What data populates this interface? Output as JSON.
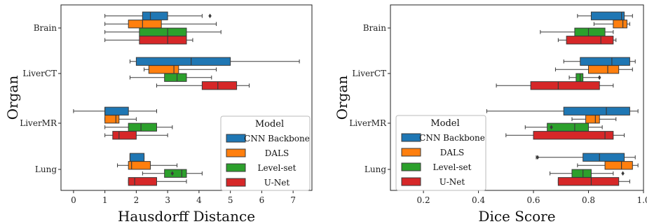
{
  "chart_data": [
    {
      "type": "boxplot",
      "xlabel": "Hausdorff Distance",
      "ylabel": "Organ",
      "xlim": [
        -0.4,
        7.6
      ],
      "xticks": [
        0,
        1,
        2,
        3,
        4,
        5,
        6,
        7
      ],
      "categories": [
        "Brain",
        "LiverCT",
        "LiverMR",
        "Lung"
      ],
      "legend": {
        "title": "Model",
        "position": "lower-right"
      },
      "series": [
        {
          "name": "CNN Backbone",
          "color": "#1f77b4",
          "boxes": [
            {
              "min": 1.0,
              "q1": 2.2,
              "median": 2.45,
              "q3": 3.0,
              "max": 4.1,
              "outliers": [
                4.35
              ]
            },
            {
              "min": 1.8,
              "q1": 2.0,
              "median": 3.75,
              "q3": 5.0,
              "max": 7.2,
              "outliers": []
            },
            {
              "min": 0.0,
              "q1": 1.0,
              "median": 1.0,
              "q3": 1.75,
              "max": 2.65,
              "outliers": []
            },
            {
              "min": 1.8,
              "q1": 1.8,
              "median": 1.8,
              "q3": 2.25,
              "max": 2.25,
              "outliers": []
            }
          ]
        },
        {
          "name": "DALS",
          "color": "#ff7f0e",
          "boxes": [
            {
              "min": 1.0,
              "q1": 1.75,
              "median": 2.2,
              "q3": 2.8,
              "max": 4.55,
              "outliers": []
            },
            {
              "min": 2.25,
              "q1": 2.4,
              "median": 3.2,
              "q3": 3.35,
              "max": 4.55,
              "outliers": []
            },
            {
              "min": 1.0,
              "q1": 1.0,
              "median": 1.35,
              "q3": 1.45,
              "max": 2.0,
              "outliers": []
            },
            {
              "min": 1.4,
              "q1": 1.75,
              "median": 1.85,
              "q3": 2.45,
              "max": 3.3,
              "outliers": []
            }
          ]
        },
        {
          "name": "Level-set",
          "color": "#2ca02c",
          "boxes": [
            {
              "min": 1.0,
              "q1": 2.1,
              "median": 3.0,
              "q3": 3.6,
              "max": 4.7,
              "outliers": []
            },
            {
              "min": 1.8,
              "q1": 2.9,
              "median": 3.3,
              "q3": 3.6,
              "max": 4.4,
              "outliers": []
            },
            {
              "min": 1.0,
              "q1": 1.75,
              "median": 2.15,
              "q3": 2.65,
              "max": 3.15,
              "outliers": []
            },
            {
              "min": 2.2,
              "q1": 2.9,
              "median": 3.45,
              "q3": 3.6,
              "max": 4.1,
              "outliers": [
                3.15
              ]
            }
          ]
        },
        {
          "name": "U-Net",
          "color": "#d62728",
          "boxes": [
            {
              "min": 1.0,
              "q1": 2.1,
              "median": 3.0,
              "q3": 3.6,
              "max": 3.8,
              "outliers": []
            },
            {
              "min": 2.65,
              "q1": 4.1,
              "median": 4.6,
              "q3": 5.2,
              "max": 5.6,
              "outliers": []
            },
            {
              "min": 1.0,
              "q1": 1.25,
              "median": 1.45,
              "q3": 2.0,
              "max": 3.0,
              "outliers": []
            },
            {
              "min": 1.75,
              "q1": 1.75,
              "median": 1.95,
              "q3": 2.65,
              "max": 3.6,
              "outliers": []
            }
          ]
        }
      ]
    },
    {
      "type": "boxplot",
      "xlabel": "Dice Score",
      "ylabel": "Organ",
      "xlim": [
        0.08,
        1.0
      ],
      "xticks": [
        0.2,
        0.4,
        0.6,
        0.8,
        1.0
      ],
      "xticklabels": [
        "0.2",
        "0.4",
        "0.6",
        "0.8",
        "1.0"
      ],
      "categories": [
        "Brain",
        "LiverCT",
        "LiverMR",
        "Lung"
      ],
      "legend": {
        "title": "Model",
        "position": "lower-left"
      },
      "series": [
        {
          "name": "CNN Backbone",
          "color": "#1f77b4",
          "boxes": [
            {
              "min": 0.76,
              "q1": 0.81,
              "median": 0.92,
              "q3": 0.93,
              "max": 0.96,
              "outliers": []
            },
            {
              "min": 0.71,
              "q1": 0.77,
              "median": 0.885,
              "q3": 0.95,
              "max": 0.97,
              "outliers": []
            },
            {
              "min": 0.43,
              "q1": 0.71,
              "median": 0.865,
              "q3": 0.95,
              "max": 0.98,
              "outliers": []
            },
            {
              "min": 0.61,
              "q1": 0.78,
              "median": 0.84,
              "q3": 0.93,
              "max": 0.97,
              "outliers": [
                0.615
              ]
            }
          ]
        },
        {
          "name": "DALS",
          "color": "#ff7f0e",
          "boxes": [
            {
              "min": 0.82,
              "q1": 0.89,
              "median": 0.925,
              "q3": 0.94,
              "max": 0.95,
              "outliers": []
            },
            {
              "min": 0.68,
              "q1": 0.8,
              "median": 0.87,
              "q3": 0.91,
              "max": 0.96,
              "outliers": []
            },
            {
              "min": 0.74,
              "q1": 0.79,
              "median": 0.825,
              "q3": 0.84,
              "max": 0.9,
              "outliers": []
            },
            {
              "min": 0.76,
              "q1": 0.86,
              "median": 0.92,
              "q3": 0.96,
              "max": 0.98,
              "outliers": []
            }
          ]
        },
        {
          "name": "Level-set",
          "color": "#2ca02c",
          "boxes": [
            {
              "min": 0.625,
              "q1": 0.75,
              "median": 0.8,
              "q3": 0.86,
              "max": 0.89,
              "outliers": []
            },
            {
              "min": 0.73,
              "q1": 0.755,
              "median": 0.77,
              "q3": 0.78,
              "max": 0.84,
              "outliers": [
                0.84
              ]
            },
            {
              "min": 0.57,
              "q1": 0.65,
              "median": 0.75,
              "q3": 0.8,
              "max": 0.85,
              "outliers": [
                0.665
              ]
            },
            {
              "min": 0.66,
              "q1": 0.74,
              "median": 0.78,
              "q3": 0.81,
              "max": 0.89,
              "outliers": [
                0.925
              ]
            }
          ]
        },
        {
          "name": "U-Net",
          "color": "#d62728",
          "boxes": [
            {
              "min": 0.69,
              "q1": 0.72,
              "median": 0.845,
              "q3": 0.89,
              "max": 0.9,
              "outliers": []
            },
            {
              "min": 0.465,
              "q1": 0.59,
              "median": 0.69,
              "q3": 0.84,
              "max": 0.89,
              "outliers": []
            },
            {
              "min": 0.5,
              "q1": 0.6,
              "median": 0.86,
              "q3": 0.89,
              "max": 0.93,
              "outliers": []
            },
            {
              "min": 0.69,
              "q1": 0.69,
              "median": 0.81,
              "q3": 0.91,
              "max": 0.95,
              "outliers": []
            }
          ]
        }
      ]
    }
  ]
}
